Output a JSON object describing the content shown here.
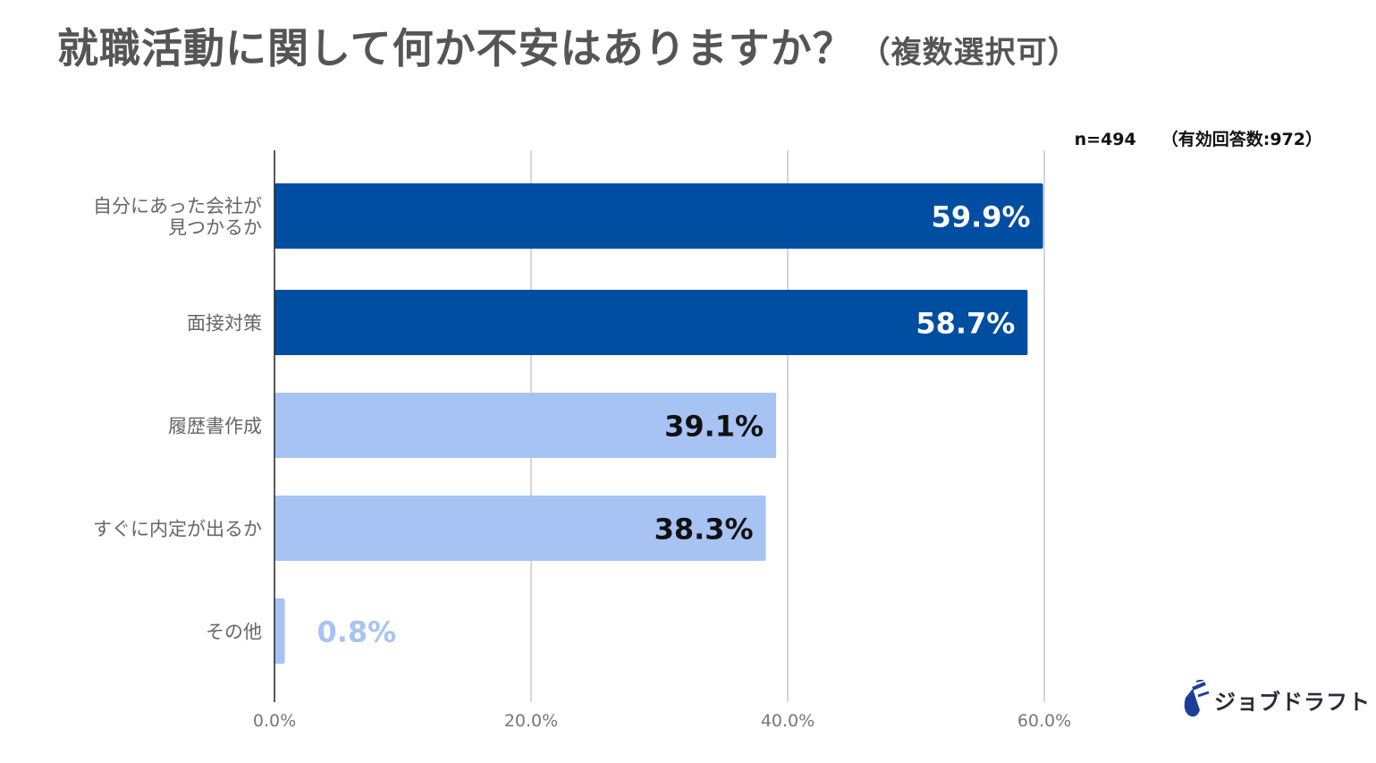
{
  "title": "就職活動に関して何か不安はありますか？",
  "subtitle": "（複数選択可）",
  "sample": {
    "n": "n=494",
    "valid": "（有効回答数:972）"
  },
  "logo": {
    "text": "ジョブドラフト",
    "icon": "logo-mark-icon"
  },
  "chart_data": {
    "type": "bar",
    "orientation": "horizontal",
    "categories": [
      [
        "自分にあった会社が",
        "見つかるか"
      ],
      [
        "面接対策"
      ],
      [
        "履歴書作成"
      ],
      [
        "すぐに内定が出るか"
      ],
      [
        "その他"
      ]
    ],
    "values": [
      59.9,
      58.7,
      39.1,
      38.3,
      0.8
    ],
    "data_labels": [
      "59.9%",
      "58.7%",
      "39.1%",
      "38.3%",
      "0.8%"
    ],
    "bar_colors": [
      "#004ea2",
      "#004ea2",
      "#a6c3f3",
      "#a6c3f3",
      "#a6c3f3"
    ],
    "label_colors": [
      "#ffffff",
      "#ffffff",
      "#111111",
      "#111111",
      "#a6c3f3"
    ],
    "xlim": [
      0,
      60
    ],
    "xticks": [
      0,
      20,
      40,
      60
    ],
    "xtick_labels": [
      "0.0%",
      "20.0%",
      "40.0%",
      "60.0%"
    ],
    "grid": true,
    "legend": "none"
  }
}
